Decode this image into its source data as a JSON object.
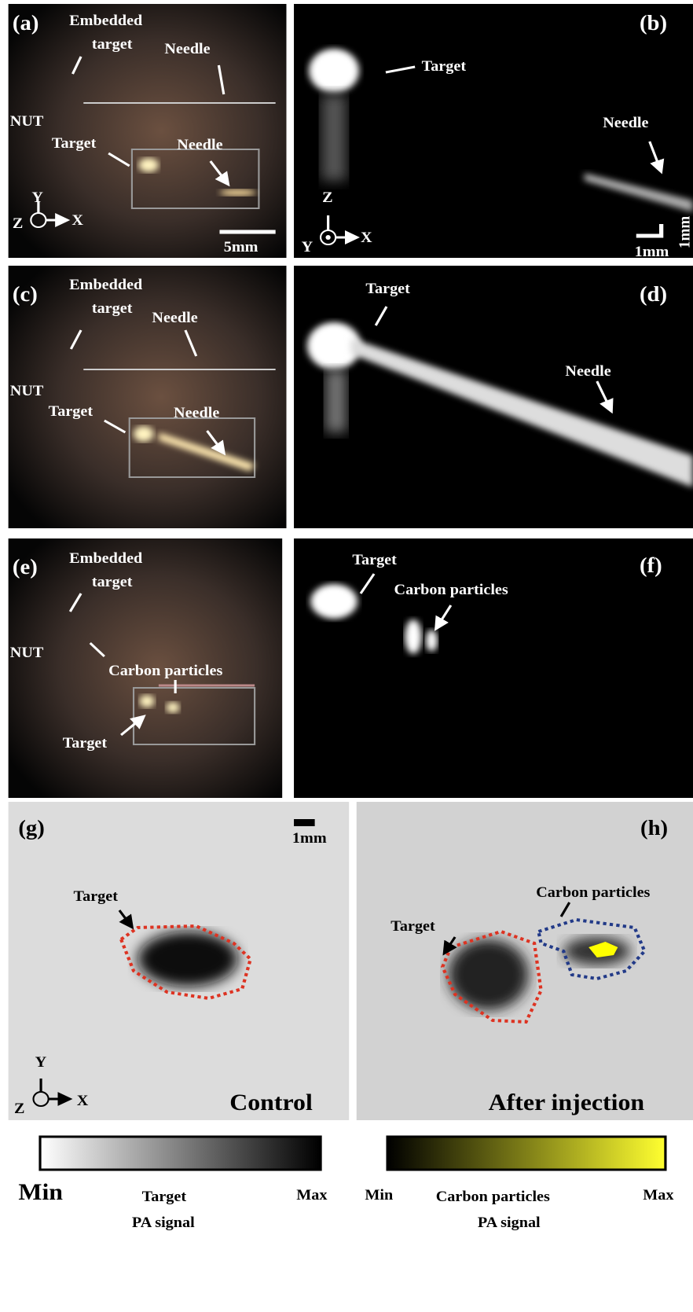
{
  "panels": {
    "a": {
      "label": "(a)",
      "annotations": [
        "Embedded",
        "target",
        "Needle",
        "NUT",
        "Target",
        "Needle"
      ],
      "scale_bar": "5mm",
      "axes": [
        "Y",
        "Z",
        "X"
      ]
    },
    "b": {
      "label": "(b)",
      "annotations": [
        "Target",
        "Needle"
      ],
      "axes": [
        "Z",
        "Y",
        "X"
      ],
      "scale_bar": [
        "1mm",
        "1mm"
      ]
    },
    "c": {
      "label": "(c)",
      "annotations": [
        "Embedded",
        "target",
        "Needle",
        "NUT",
        "Target",
        "Needle"
      ]
    },
    "d": {
      "label": "(d)",
      "annotations": [
        "Target",
        "Needle"
      ]
    },
    "e": {
      "label": "(e)",
      "annotations": [
        "Embedded",
        "target",
        "NUT",
        "Carbon particles",
        "Target"
      ]
    },
    "f": {
      "label": "(f)",
      "annotations": [
        "Target",
        "Carbon particles"
      ]
    },
    "g": {
      "label": "(g)",
      "scale_bar": "1mm",
      "annotations": [
        "Target"
      ],
      "condition": "Control",
      "axes": [
        "Y",
        "Z",
        "X"
      ]
    },
    "h": {
      "label": "(h)",
      "annotations": [
        "Carbon particles",
        "Target"
      ],
      "condition": "After injection"
    }
  },
  "colorbars": [
    {
      "min": "Min",
      "title": [
        "Target",
        "PA signal"
      ],
      "max": "Max"
    },
    {
      "min": "Min",
      "title": [
        "Carbon particles",
        "PA signal"
      ],
      "max": "Max"
    }
  ]
}
